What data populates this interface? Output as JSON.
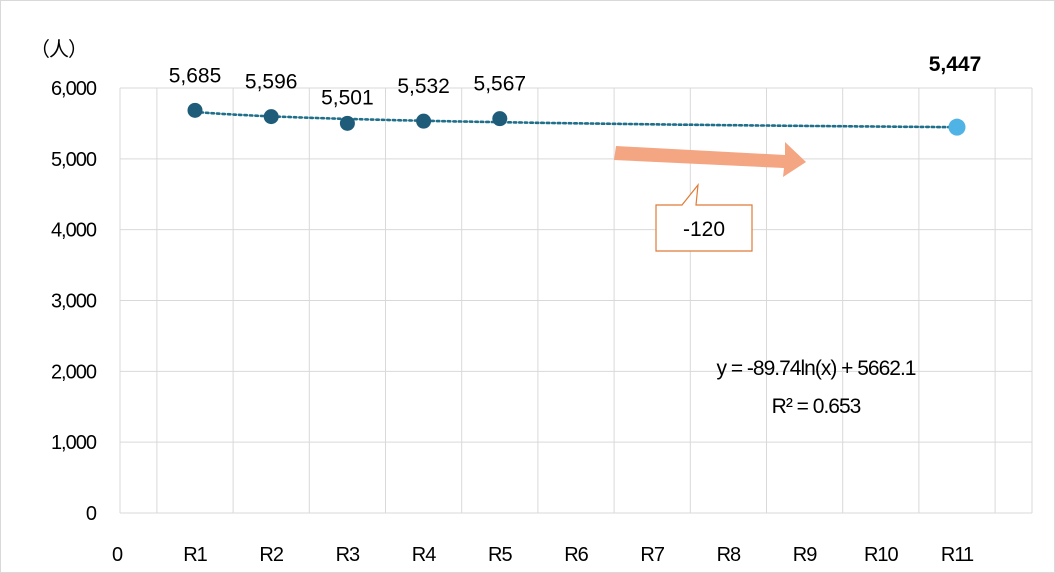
{
  "chart_data": {
    "type": "line",
    "y_unit_label": "（人）",
    "x_origin_label": "0",
    "categories": [
      "R1",
      "R2",
      "R3",
      "R4",
      "R5",
      "R6",
      "R7",
      "R8",
      "R9",
      "R10",
      "R11"
    ],
    "ylim": [
      0,
      6000
    ],
    "yticks": [
      0,
      1000,
      2000,
      3000,
      4000,
      5000,
      6000
    ],
    "ytick_labels": [
      "0",
      "1,000",
      "2,000",
      "3,000",
      "4,000",
      "5,000",
      "6,000"
    ],
    "grid": true,
    "series": [
      {
        "type": "actual",
        "color": "#1f5c7a",
        "points": [
          {
            "x": "R1",
            "y": 5685,
            "label": "5,685"
          },
          {
            "x": "R2",
            "y": 5596,
            "label": "5,596"
          },
          {
            "x": "R3",
            "y": 5501,
            "label": "5,501"
          },
          {
            "x": "R4",
            "y": 5532,
            "label": "5,532"
          },
          {
            "x": "R5",
            "y": 5567,
            "label": "5,567"
          }
        ]
      },
      {
        "type": "projection",
        "color": "#4fb3e6",
        "points": [
          {
            "x": "R11",
            "y": 5447,
            "label": "5,447"
          }
        ]
      }
    ],
    "trendline": {
      "style": "dotted",
      "color": "#1f6f8b",
      "a": -89.74,
      "b": 5662.1,
      "equation": "y = -89.74ln(x) + 5662.1",
      "r_squared": "R² = 0.653"
    },
    "annotation": {
      "text": "-120",
      "arrow_color": "#f4a582",
      "callout_border": "#e07b39"
    }
  }
}
